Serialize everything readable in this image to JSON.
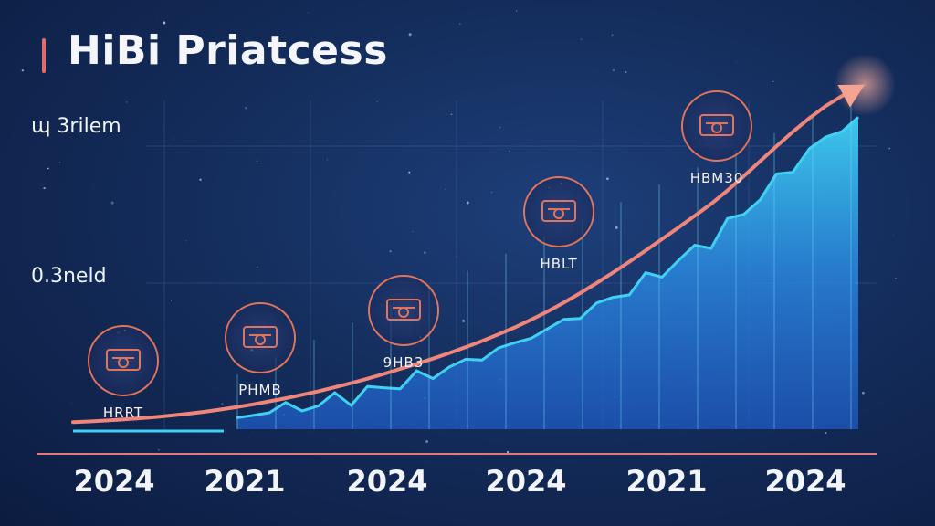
{
  "chart_data": {
    "type": "area",
    "title": "HiBi Priatcess",
    "y_ticks": [
      "ɰ 3rilem",
      "0.3neld"
    ],
    "categories": [
      "2024",
      "2021",
      "2024",
      "2024",
      "2021",
      "2024"
    ],
    "series": [
      {
        "values": [
          0.02,
          0.06,
          0.16,
          0.33,
          0.62,
          0.97
        ]
      },
      {
        "values": [
          0.0,
          0.03,
          0.12,
          0.28,
          0.52,
          0.88
        ]
      }
    ],
    "annotations": [
      {
        "label": "HRRT",
        "icon": "machinery-icon",
        "x_index": 0
      },
      {
        "label": "PHMB",
        "icon": "bowl-icon",
        "x_index": 1
      },
      {
        "label": "9HB3",
        "icon": "anvil-icon",
        "x_index": 2
      },
      {
        "label": "HBLT",
        "icon": "gear-figure-icon",
        "x_index": 3
      },
      {
        "label": "HBM30",
        "icon": "glasses-icon",
        "x_index": 4
      }
    ],
    "colors": {
      "trend_line": "#f0857a",
      "area_top": "#3fd0f2",
      "area_bottom": "#1f5ac4",
      "icon_ring": "#e0745c",
      "axis": "#e4787a"
    },
    "grid": true
  }
}
